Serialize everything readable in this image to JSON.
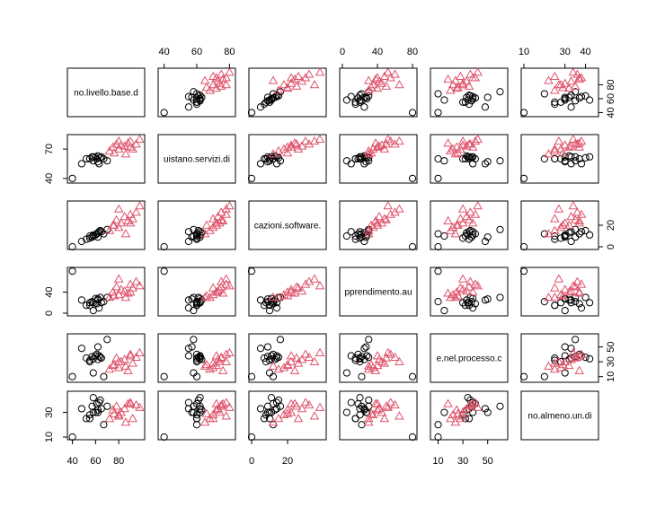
{
  "chart_data": {
    "type": "scatter",
    "subtype": "pairs-matrix",
    "grid": false,
    "point_styles": [
      {
        "group": 0,
        "shape": "circle",
        "color": "#000000"
      },
      {
        "group": 1,
        "shape": "triangle",
        "color": "#DF536B"
      }
    ],
    "variables": [
      {
        "label": "no.livello.base.d",
        "range": [
          38,
          100
        ],
        "ticks": [
          40,
          60,
          80
        ]
      },
      {
        "label": "uistano.servizi.di",
        "range": [
          38,
          82
        ],
        "ticks": [
          40,
          60,
          80
        ],
        "side_ticks": [
          40,
          70
        ]
      },
      {
        "label": "cazioni.software.",
        "range": [
          0,
          40
        ],
        "ticks": [
          0,
          20
        ],
        "side_ticks": [
          0,
          20
        ]
      },
      {
        "label": "pprendimento.au",
        "range": [
          0,
          82
        ],
        "ticks": [
          0,
          40,
          80
        ],
        "side_ticks": [
          0,
          40
        ]
      },
      {
        "label": "e.nel.processo.c",
        "range": [
          6,
          64
        ],
        "ticks": [
          10,
          30,
          50
        ],
        "side_ticks": [
          10,
          30
        ]
      },
      {
        "label": "no.almeno.un.di",
        "range": [
          10,
          45
        ],
        "ticks": [
          10,
          30,
          40
        ],
        "side_ticks": [
          10,
          30
        ]
      }
    ],
    "tick_labels": {
      "top": {
        "1": [
          "40",
          "60",
          "80"
        ],
        "3": [
          "0",
          "40",
          "80"
        ],
        "5": [
          "10",
          "30",
          "40"
        ]
      },
      "right": {
        "0": [
          "40",
          "60",
          "80"
        ],
        "2": [
          "0",
          "20"
        ],
        "4": [
          "10",
          "30",
          "50"
        ]
      },
      "bottom": {
        "0": [
          "40",
          "60",
          "80"
        ],
        "2": [
          "0",
          "20"
        ],
        "4": [
          "10",
          "30",
          "50"
        ]
      },
      "left": {
        "1": [
          "40",
          "70"
        ],
        "3": [
          "0",
          "40"
        ],
        "5": [
          "10",
          "30"
        ]
      }
    },
    "observations": [
      {
        "group": 0,
        "values": [
          40,
          40,
          0,
          80,
          10,
          10
        ]
      },
      {
        "group": 0,
        "values": [
          48,
          55,
          5,
          25,
          48,
          33
        ]
      },
      {
        "group": 0,
        "values": [
          52,
          60,
          7,
          15,
          35,
          25
        ]
      },
      {
        "group": 0,
        "values": [
          55,
          60,
          8,
          20,
          30,
          28
        ]
      },
      {
        "group": 0,
        "values": [
          57,
          62,
          9,
          22,
          37,
          35
        ]
      },
      {
        "group": 0,
        "values": [
          58,
          58,
          10,
          5,
          15,
          30
        ]
      },
      {
        "group": 0,
        "values": [
          60,
          62,
          11,
          28,
          38,
          30
        ]
      },
      {
        "group": 0,
        "values": [
          61,
          60,
          12,
          18,
          40,
          37
        ]
      },
      {
        "group": 0,
        "values": [
          62,
          63,
          13,
          25,
          33,
          32
        ]
      },
      {
        "group": 0,
        "values": [
          63,
          55,
          14,
          10,
          38,
          38
        ]
      },
      {
        "group": 0,
        "values": [
          64,
          61,
          15,
          30,
          36,
          40
        ]
      },
      {
        "group": 0,
        "values": [
          65,
          62,
          14,
          20,
          35,
          33
        ]
      },
      {
        "group": 0,
        "values": [
          67,
          60,
          12,
          22,
          10,
          20
        ]
      },
      {
        "group": 0,
        "values": [
          70,
          58,
          16,
          30,
          60,
          35
        ]
      },
      {
        "group": 0,
        "values": [
          55,
          60,
          10,
          15,
          32,
          25
        ]
      },
      {
        "group": 0,
        "values": [
          58,
          62,
          11,
          20,
          34,
          42
        ]
      },
      {
        "group": 0,
        "values": [
          62,
          57,
          9,
          27,
          50,
          30
        ]
      },
      {
        "group": 1,
        "values": [
          72,
          68,
          15,
          30,
          20,
          25
        ]
      },
      {
        "group": 1,
        "values": [
          75,
          72,
          20,
          40,
          25,
          32
        ]
      },
      {
        "group": 1,
        "values": [
          78,
          75,
          25,
          50,
          35,
          35
        ]
      },
      {
        "group": 1,
        "values": [
          80,
          70,
          18,
          35,
          22,
          28
        ]
      },
      {
        "group": 1,
        "values": [
          82,
          74,
          22,
          45,
          30,
          30
        ]
      },
      {
        "group": 1,
        "values": [
          85,
          73,
          28,
          42,
          33,
          33
        ]
      },
      {
        "group": 1,
        "values": [
          88,
          76,
          24,
          38,
          18,
          37
        ]
      },
      {
        "group": 1,
        "values": [
          90,
          78,
          30,
          55,
          40,
          38
        ]
      },
      {
        "group": 1,
        "values": [
          92,
          70,
          26,
          48,
          28,
          25
        ]
      },
      {
        "group": 1,
        "values": [
          95,
          75,
          32,
          60,
          36,
          36
        ]
      },
      {
        "group": 1,
        "values": [
          98,
          80,
          38,
          52,
          42,
          34
        ]
      },
      {
        "group": 1,
        "values": [
          76,
          66,
          20,
          33,
          26,
          29
        ]
      },
      {
        "group": 1,
        "values": [
          80,
          78,
          35,
          65,
          30,
          27
        ]
      },
      {
        "group": 1,
        "values": [
          86,
          65,
          12,
          30,
          24,
          22
        ]
      },
      {
        "group": 1,
        "values": [
          90,
          72,
          22,
          40,
          38,
          37
        ]
      }
    ]
  }
}
